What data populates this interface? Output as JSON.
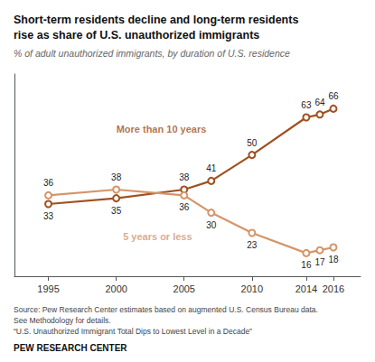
{
  "chart_data": {
    "type": "line",
    "title": "Short-term residents decline and long-term residents\nrise as share of U.S. unauthorized immigrants",
    "subtitle": "% of adult unauthorized immigrants, by duration of U.S. residence",
    "source": "Source: Pew Research Center estimates based on augmented U.S. Census Bureau data.\nSee Methodology for details.\n“U.S. Unauthorized Immigrant Total Dips to Lowest Level in a Decade”",
    "footer": "PEW RESEARCH CENTER",
    "x": [
      1995,
      2000,
      2005,
      2007,
      2010,
      2014,
      2015,
      2016
    ],
    "series": [
      {
        "name": "More than 10 years",
        "color": "#a05020",
        "values": [
          33,
          35,
          38,
          41,
          50,
          63,
          64,
          66
        ]
      },
      {
        "name": "5 years or less",
        "color": "#d4956a",
        "values": [
          36,
          38,
          36,
          30,
          23,
          16,
          17,
          18
        ]
      }
    ],
    "annotations": [
      {
        "text": "More than 10 years",
        "x": 2000,
        "y": 57,
        "color": "#a05020"
      },
      {
        "text": "5 years or less",
        "x": 2000.5,
        "y": 20,
        "color": "#d4956a"
      }
    ],
    "xlim": [
      1992.5,
      2018
    ],
    "xticks": [
      1995,
      2000,
      2005,
      2010,
      2014,
      2016
    ],
    "ylim": [
      8,
      78
    ],
    "tick_labels": "x",
    "grid": false,
    "data_labels": true,
    "marker": "open_circle"
  }
}
